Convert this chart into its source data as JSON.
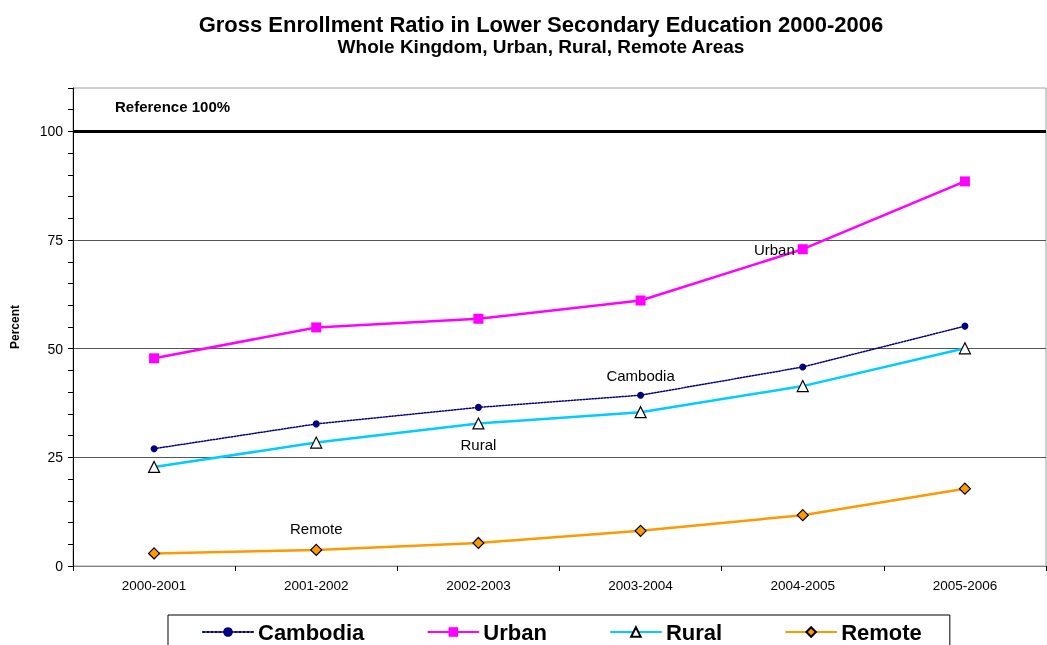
{
  "chart_data": {
    "type": "line",
    "title": "Gross Enrollment Ratio in Lower Secondary Education 2000-2006",
    "subtitle": "Whole Kingdom, Urban, Rural, Remote Areas",
    "ylabel": "Percent",
    "categories": [
      "2000-2001",
      "2001-2002",
      "2002-2003",
      "2003-2004",
      "2004-2005",
      "2005-2006"
    ],
    "series": [
      {
        "name": "Cambodia",
        "color": "#000080",
        "marker": "circle",
        "line_style": "dotted",
        "values": [
          27.0,
          32.7,
          36.5,
          39.3,
          45.8,
          55.2
        ]
      },
      {
        "name": "Urban",
        "color": "#ff00ff",
        "marker": "square",
        "line_style": "solid",
        "values": [
          47.8,
          54.9,
          56.9,
          61.1,
          72.9,
          88.5
        ]
      },
      {
        "name": "Rural",
        "color": "#00ccff",
        "marker": "triangle",
        "line_style": "solid",
        "values": [
          22.8,
          28.4,
          32.8,
          35.4,
          41.4,
          50.1
        ]
      },
      {
        "name": "Remote",
        "color": "#ff9900",
        "marker": "diamond",
        "line_style": "solid",
        "values": [
          2.9,
          3.7,
          5.3,
          8.1,
          11.7,
          17.8
        ]
      }
    ],
    "ylim": [
      0,
      110
    ],
    "yticks": [
      0,
      {
        "value": 5,
        "label": null
      },
      {
        "value": 10,
        "label": null
      },
      {
        "value": 15,
        "label": null
      },
      {
        "value": 20,
        "label": null
      },
      25,
      {
        "value": 30,
        "label": null
      },
      {
        "value": 35,
        "label": null
      },
      {
        "value": 40,
        "label": null
      },
      {
        "value": 45,
        "label": null
      },
      50,
      {
        "value": 55,
        "label": null
      },
      {
        "value": 60,
        "label": null
      },
      {
        "value": 65,
        "label": null
      },
      {
        "value": 70,
        "label": null
      },
      75,
      {
        "value": 80,
        "label": null
      },
      {
        "value": 85,
        "label": null
      },
      {
        "value": 90,
        "label": null
      },
      {
        "value": 95,
        "label": null
      },
      100,
      {
        "value": 105,
        "label": null
      },
      {
        "value": 110,
        "label": null
      }
    ],
    "grid": "y",
    "legend": "bottom",
    "ref_lines": [
      {
        "axis": "y",
        "value": 100,
        "label": "Reference 100%",
        "color": "#000000"
      }
    ],
    "annotations": [
      {
        "text": "Urban",
        "x": "2004-2005",
        "y": 72.9
      },
      {
        "text": "Cambodia",
        "x": "2003-2004",
        "y": 39.3
      },
      {
        "text": "Rural",
        "x": "2002-2003",
        "y": 32.8
      },
      {
        "text": "Remote",
        "x": "2001-2002",
        "y": 3.7
      }
    ]
  }
}
